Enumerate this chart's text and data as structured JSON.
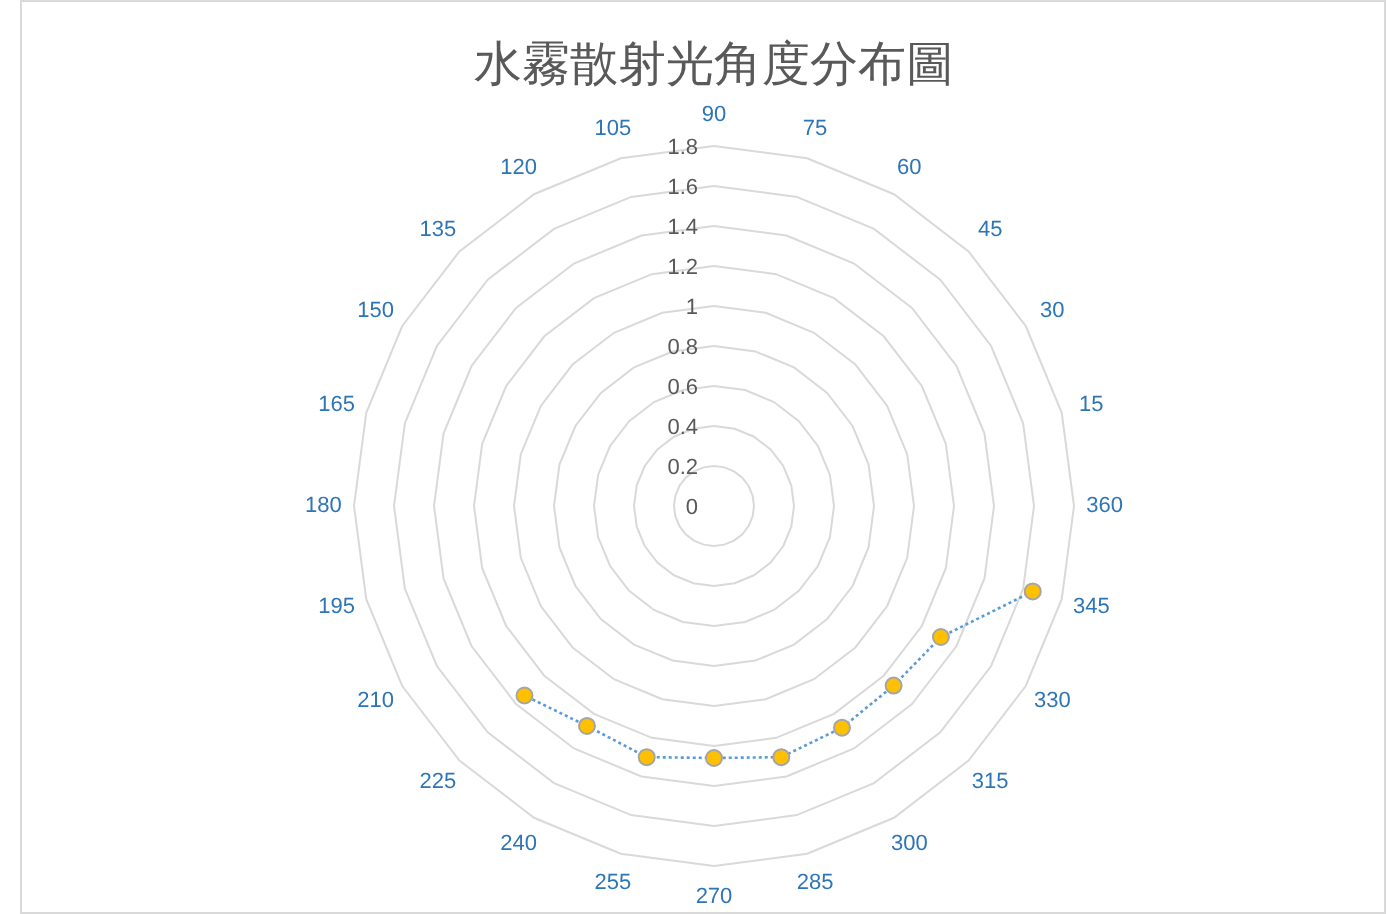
{
  "chart_data": {
    "type": "radar",
    "title": "水霧散射光角度分布圖",
    "categories": [
      "90",
      "75",
      "60",
      "45",
      "30",
      "15",
      "360",
      "345",
      "330",
      "315",
      "300",
      "285",
      "270",
      "255",
      "240",
      "225",
      "210",
      "195",
      "180",
      "165",
      "150",
      "135",
      "120",
      "105"
    ],
    "series": [
      {
        "color": "#5b9bd5",
        "colors": [
          null,
          null,
          null,
          null,
          null,
          null,
          null,
          "#ffc000",
          "#ffc000",
          "#ffc000",
          "#ffc000",
          "#ffc000",
          "#ffc000",
          "#ffc000",
          "#ffc000",
          "#ffc000",
          null,
          null,
          null,
          null,
          null,
          null,
          null,
          null
        ],
        "values": [
          null,
          null,
          null,
          null,
          null,
          null,
          null,
          1.65,
          1.31,
          1.27,
          1.28,
          1.3,
          1.26,
          1.3,
          1.27,
          1.34,
          null,
          null,
          null,
          null,
          null,
          null,
          null,
          null
        ]
      }
    ],
    "ylim": [
      0,
      1.8
    ],
    "yticks": [
      0,
      0.2,
      0.4,
      0.6,
      0.8,
      1,
      1.2,
      1.4,
      1.6,
      1.8
    ],
    "grid": true,
    "marker": "circle",
    "line_style": "dotted"
  }
}
